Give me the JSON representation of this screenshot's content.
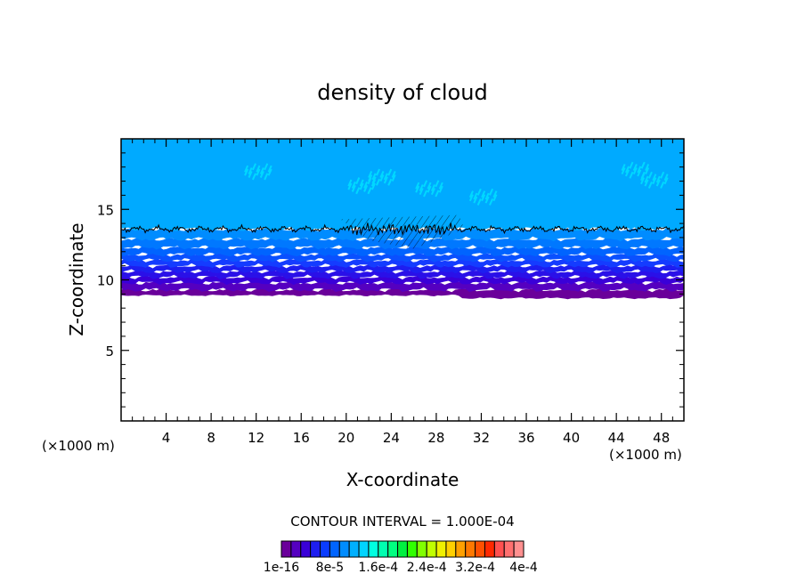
{
  "chart_data": {
    "type": "heatmap",
    "title": "density of cloud",
    "xlabel": "X-coordinate",
    "ylabel": "Z-coordinate",
    "x_unit_left": "(×1000 m)",
    "x_unit_right": "(×1000 m)",
    "xlim": [
      0,
      50
    ],
    "ylim": [
      0,
      20
    ],
    "x_ticks": [
      4,
      8,
      12,
      16,
      20,
      24,
      28,
      32,
      36,
      40,
      44,
      48
    ],
    "y_ticks": [
      5,
      10,
      15
    ],
    "contour_interval_text": "CONTOUR INTERVAL = 1.000E-04",
    "colorbar_labels": [
      "1e-16",
      "8e-5",
      "1.6e-4",
      "2.4e-4",
      "3.2e-4",
      "4e-4"
    ],
    "colorbar_colors": [
      "#6a009a",
      "#5500c0",
      "#3a00d8",
      "#1e1ef0",
      "#0a3cff",
      "#0064ff",
      "#008cff",
      "#00b0ff",
      "#00d4ff",
      "#00ffe0",
      "#00ffb0",
      "#00ff80",
      "#00f040",
      "#30ff00",
      "#80ff00",
      "#c0ff00",
      "#f0f000",
      "#ffd000",
      "#ffa000",
      "#ff7800",
      "#ff5000",
      "#ff2800",
      "#ff5050",
      "#ff7070",
      "#ff9090"
    ],
    "field_bands": [
      {
        "z_bottom": 8.9,
        "z_top": 9.3,
        "color": "#6a009a"
      },
      {
        "z_bottom": 9.3,
        "z_top": 9.8,
        "color": "#5500c0"
      },
      {
        "z_bottom": 9.8,
        "z_top": 10.2,
        "color": "#3a00d8"
      },
      {
        "z_bottom": 10.2,
        "z_top": 10.6,
        "color": "#2a10e8"
      },
      {
        "z_bottom": 10.6,
        "z_top": 11.0,
        "color": "#1e1ef0"
      },
      {
        "z_bottom": 11.0,
        "z_top": 11.4,
        "color": "#143cff"
      },
      {
        "z_bottom": 11.4,
        "z_top": 11.8,
        "color": "#0a50ff"
      },
      {
        "z_bottom": 11.8,
        "z_top": 12.3,
        "color": "#0064ff"
      },
      {
        "z_bottom": 12.3,
        "z_top": 12.9,
        "color": "#0078ff"
      },
      {
        "z_bottom": 12.9,
        "z_top": 13.6,
        "color": "#008cff"
      },
      {
        "z_bottom": 13.6,
        "z_top": 20.0,
        "color": "#00aaff"
      }
    ],
    "contour_level_z": 13.6
  }
}
